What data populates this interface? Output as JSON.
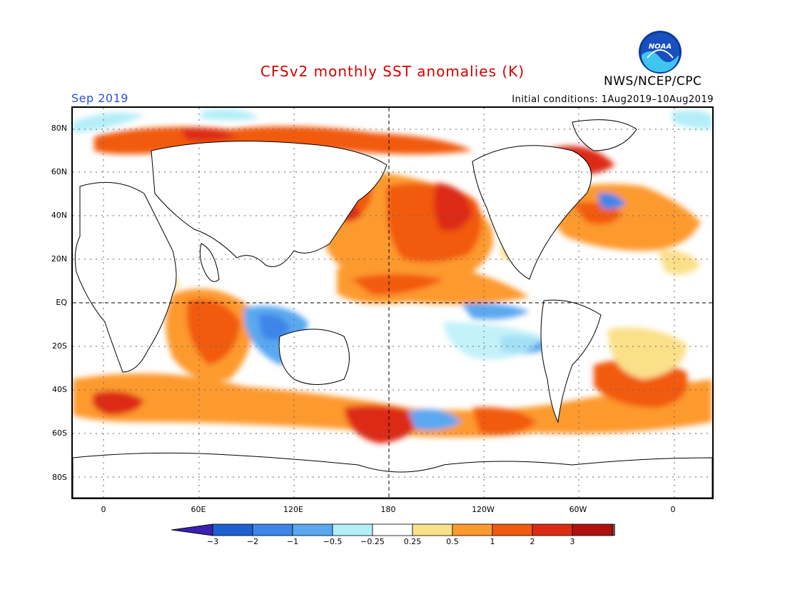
{
  "header": {
    "title": "CFSv2 monthly SST anomalies (K)",
    "agency": "NWS/NCEP/CPC",
    "month": "Sep 2019",
    "initial_conditions": "Initial conditions: 1Aug2019–10Aug2019",
    "logo_text": "NOAA"
  },
  "map": {
    "lat_labels": [
      "80N",
      "60N",
      "40N",
      "20N",
      "EQ",
      "20S",
      "40S",
      "60S",
      "80S"
    ],
    "lon_labels": [
      "0",
      "60E",
      "120E",
      "180",
      "120W",
      "60W",
      "0"
    ]
  },
  "colorbar": {
    "tick_labels": [
      "−3",
      "−2",
      "−1",
      "−0.5",
      "−0.25",
      "0.25",
      "0.5",
      "1",
      "2",
      "3"
    ],
    "colors": [
      "#3a1fb0",
      "#1f5fd0",
      "#3c86e8",
      "#5aa8f0",
      "#b4eef8",
      "#ffffff",
      "#fbe08a",
      "#fd9a2e",
      "#f25a10",
      "#dd2a14",
      "#b01010",
      "#7a4a3a"
    ]
  }
}
